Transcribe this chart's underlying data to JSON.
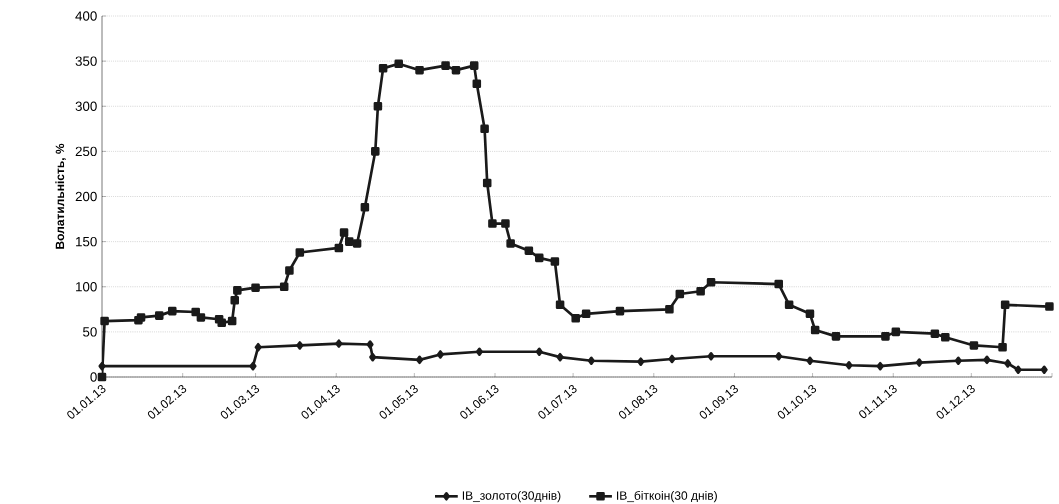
{
  "chart_data": {
    "type": "line",
    "ylabel": "Волатильність, %",
    "xlim": [
      "2013-01-01",
      "2014-01-01"
    ],
    "xticks": [
      {
        "value": "2013-01-01",
        "label": "01.01.13"
      },
      {
        "value": "2013-02-01",
        "label": "01.02.13"
      },
      {
        "value": "2013-03-01",
        "label": "01.03.13"
      },
      {
        "value": "2013-04-01",
        "label": "01.04.13"
      },
      {
        "value": "2013-05-01",
        "label": "01.05.13"
      },
      {
        "value": "2013-06-01",
        "label": "01.06.13"
      },
      {
        "value": "2013-07-01",
        "label": "01.07.13"
      },
      {
        "value": "2013-08-01",
        "label": "01.08.13"
      },
      {
        "value": "2013-09-01",
        "label": "01.09.13"
      },
      {
        "value": "2013-10-01",
        "label": "01.10.13"
      },
      {
        "value": "2013-11-01",
        "label": "01.11.13"
      },
      {
        "value": "2013-12-01",
        "label": "01.12.13"
      },
      {
        "value": "2014-01-01",
        "label": null
      }
    ],
    "ylim": [
      0,
      400
    ],
    "yticks": [
      0,
      50,
      100,
      150,
      200,
      250,
      300,
      350,
      400
    ],
    "grid": "y",
    "legend": "bottom",
    "line_style": "solid",
    "series": [
      {
        "name": "IB_золото(30днів)",
        "color": "#1a1a1a",
        "marker": "diamond",
        "x": [
          "2013-01-01",
          "2013-02-28",
          "2013-03-02",
          "2013-03-18",
          "2013-04-02",
          "2013-04-14",
          "2013-04-15",
          "2013-05-03",
          "2013-05-11",
          "2013-05-26",
          "2013-06-18",
          "2013-06-26",
          "2013-07-08",
          "2013-07-27",
          "2013-08-08",
          "2013-08-23",
          "2013-09-18",
          "2013-09-30",
          "2013-10-15",
          "2013-10-27",
          "2013-11-11",
          "2013-11-26",
          "2013-12-07",
          "2013-12-15",
          "2013-12-19",
          "2013-12-29"
        ],
        "values": [
          12,
          12,
          33,
          35,
          37,
          36,
          22,
          19,
          25,
          28,
          28,
          22,
          18,
          17,
          20,
          23,
          23,
          18,
          13,
          12,
          16,
          18,
          19,
          15,
          8,
          8
        ]
      },
      {
        "name": "IB_біткоін(30 днів)",
        "color": "#1a1a1a",
        "marker": "square",
        "x": [
          "2013-01-01",
          "2013-01-02",
          "2013-01-15",
          "2013-01-16",
          "2013-01-23",
          "2013-01-28",
          "2013-02-06",
          "2013-02-08",
          "2013-02-15",
          "2013-02-16",
          "2013-02-20",
          "2013-02-21",
          "2013-02-22",
          "2013-03-01",
          "2013-03-12",
          "2013-03-14",
          "2013-03-18",
          "2013-04-02",
          "2013-04-04",
          "2013-04-06",
          "2013-04-09",
          "2013-04-12",
          "2013-04-16",
          "2013-04-17",
          "2013-04-19",
          "2013-04-25",
          "2013-05-03",
          "2013-05-13",
          "2013-05-17",
          "2013-05-24",
          "2013-05-25",
          "2013-05-28",
          "2013-05-29",
          "2013-05-31",
          "2013-06-05",
          "2013-06-07",
          "2013-06-14",
          "2013-06-18",
          "2013-06-24",
          "2013-06-26",
          "2013-07-02",
          "2013-07-06",
          "2013-07-19",
          "2013-08-07",
          "2013-08-11",
          "2013-08-19",
          "2013-08-23",
          "2013-09-18",
          "2013-09-22",
          "2013-09-30",
          "2013-10-02",
          "2013-10-10",
          "2013-10-29",
          "2013-11-02",
          "2013-11-17",
          "2013-11-21",
          "2013-12-02",
          "2013-12-13",
          "2013-12-14",
          "2013-12-31"
        ],
        "values": [
          0,
          62,
          63,
          66,
          68,
          73,
          72,
          66,
          64,
          60,
          62,
          85,
          96,
          99,
          100,
          118,
          138,
          143,
          160,
          150,
          148,
          188,
          250,
          300,
          342,
          347,
          340,
          345,
          340,
          345,
          325,
          275,
          215,
          170,
          170,
          148,
          140,
          132,
          128,
          80,
          65,
          70,
          73,
          75,
          92,
          95,
          105,
          103,
          80,
          70,
          52,
          45,
          45,
          50,
          48,
          44,
          35,
          33,
          80,
          78
        ]
      }
    ]
  }
}
